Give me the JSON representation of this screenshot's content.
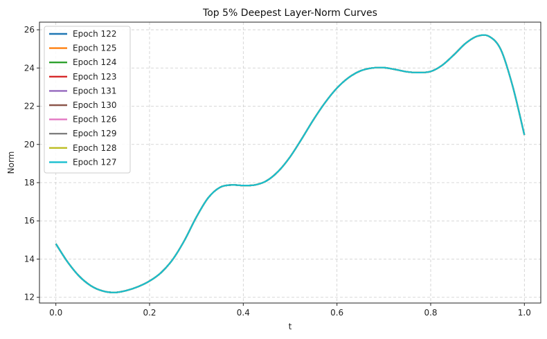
{
  "chart_data": {
    "type": "line",
    "title": "Top 5% Deepest Layer-Norm Curves",
    "xlabel": "t",
    "ylabel": "Norm",
    "xlim": [
      -0.035,
      1.035
    ],
    "ylim": [
      11.7,
      26.4
    ],
    "xticks": [
      0.0,
      0.2,
      0.4,
      0.6,
      0.8,
      1.0
    ],
    "xtick_labels": [
      "0.0",
      "0.2",
      "0.4",
      "0.6",
      "0.8",
      "1.0"
    ],
    "yticks": [
      12,
      14,
      16,
      18,
      20,
      22,
      24,
      26
    ],
    "ytick_labels": [
      "12",
      "14",
      "16",
      "18",
      "20",
      "22",
      "24",
      "26"
    ],
    "grid": true,
    "legend_position": "top-left",
    "x": [
      0.0,
      0.025,
      0.05,
      0.075,
      0.1,
      0.125,
      0.15,
      0.175,
      0.2,
      0.225,
      0.25,
      0.275,
      0.3,
      0.325,
      0.35,
      0.375,
      0.4,
      0.425,
      0.45,
      0.475,
      0.5,
      0.525,
      0.55,
      0.575,
      0.6,
      0.625,
      0.65,
      0.675,
      0.7,
      0.725,
      0.75,
      0.775,
      0.8,
      0.825,
      0.85,
      0.875,
      0.9,
      0.925,
      0.95,
      0.975,
      1.0
    ],
    "series": [
      {
        "name": "Epoch 122",
        "color": "#1f77b4",
        "values": [
          14.8,
          13.85,
          13.1,
          12.6,
          12.33,
          12.25,
          12.35,
          12.55,
          12.85,
          13.3,
          14.0,
          15.0,
          16.2,
          17.2,
          17.75,
          17.88,
          17.85,
          17.88,
          18.1,
          18.6,
          19.35,
          20.3,
          21.3,
          22.2,
          22.95,
          23.5,
          23.85,
          24.0,
          24.02,
          23.92,
          23.8,
          23.76,
          23.82,
          24.15,
          24.7,
          25.3,
          25.67,
          25.65,
          24.95,
          23.05,
          20.5
        ]
      },
      {
        "name": "Epoch 125",
        "color": "#ff7f0e",
        "values": [
          14.8,
          13.85,
          13.1,
          12.6,
          12.33,
          12.25,
          12.35,
          12.55,
          12.85,
          13.3,
          14.0,
          15.0,
          16.2,
          17.2,
          17.75,
          17.88,
          17.85,
          17.88,
          18.1,
          18.6,
          19.35,
          20.3,
          21.3,
          22.2,
          22.95,
          23.5,
          23.85,
          24.0,
          24.02,
          23.92,
          23.8,
          23.76,
          23.82,
          24.15,
          24.7,
          25.3,
          25.67,
          25.65,
          24.95,
          23.05,
          20.5
        ]
      },
      {
        "name": "Epoch 124",
        "color": "#2ca02c",
        "values": [
          14.8,
          13.85,
          13.1,
          12.6,
          12.33,
          12.25,
          12.35,
          12.55,
          12.85,
          13.3,
          14.0,
          15.0,
          16.2,
          17.2,
          17.75,
          17.88,
          17.85,
          17.88,
          18.1,
          18.6,
          19.35,
          20.3,
          21.3,
          22.2,
          22.95,
          23.5,
          23.85,
          24.0,
          24.02,
          23.92,
          23.8,
          23.76,
          23.82,
          24.15,
          24.7,
          25.3,
          25.67,
          25.65,
          24.95,
          23.05,
          20.5
        ]
      },
      {
        "name": "Epoch 123",
        "color": "#d62728",
        "values": [
          14.8,
          13.85,
          13.1,
          12.6,
          12.33,
          12.25,
          12.35,
          12.55,
          12.85,
          13.3,
          14.0,
          15.0,
          16.2,
          17.2,
          17.75,
          17.88,
          17.85,
          17.88,
          18.1,
          18.6,
          19.35,
          20.3,
          21.3,
          22.2,
          22.95,
          23.5,
          23.85,
          24.0,
          24.02,
          23.92,
          23.8,
          23.76,
          23.82,
          24.15,
          24.7,
          25.3,
          25.67,
          25.65,
          24.95,
          23.05,
          20.5
        ]
      },
      {
        "name": "Epoch 131",
        "color": "#9467bd",
        "values": [
          14.8,
          13.85,
          13.1,
          12.6,
          12.33,
          12.25,
          12.35,
          12.55,
          12.85,
          13.3,
          14.0,
          15.0,
          16.2,
          17.2,
          17.75,
          17.88,
          17.85,
          17.88,
          18.1,
          18.6,
          19.35,
          20.3,
          21.3,
          22.2,
          22.95,
          23.5,
          23.85,
          24.0,
          24.02,
          23.92,
          23.8,
          23.76,
          23.82,
          24.15,
          24.7,
          25.3,
          25.67,
          25.65,
          24.95,
          23.05,
          20.5
        ]
      },
      {
        "name": "Epoch 130",
        "color": "#8c564b",
        "values": [
          14.8,
          13.85,
          13.1,
          12.6,
          12.33,
          12.25,
          12.35,
          12.55,
          12.85,
          13.3,
          14.0,
          15.0,
          16.2,
          17.2,
          17.75,
          17.88,
          17.85,
          17.88,
          18.1,
          18.6,
          19.35,
          20.3,
          21.3,
          22.2,
          22.95,
          23.5,
          23.85,
          24.0,
          24.02,
          23.92,
          23.8,
          23.76,
          23.82,
          24.15,
          24.7,
          25.3,
          25.67,
          25.65,
          24.95,
          23.05,
          20.5
        ]
      },
      {
        "name": "Epoch 126",
        "color": "#e377c2",
        "values": [
          14.8,
          13.85,
          13.1,
          12.6,
          12.33,
          12.25,
          12.35,
          12.55,
          12.85,
          13.3,
          14.0,
          15.0,
          16.2,
          17.2,
          17.75,
          17.88,
          17.85,
          17.88,
          18.1,
          18.6,
          19.35,
          20.3,
          21.3,
          22.2,
          22.95,
          23.5,
          23.85,
          24.0,
          24.02,
          23.92,
          23.8,
          23.76,
          23.82,
          24.15,
          24.7,
          25.3,
          25.67,
          25.65,
          24.95,
          23.05,
          20.5
        ]
      },
      {
        "name": "Epoch 129",
        "color": "#7f7f7f",
        "values": [
          14.8,
          13.85,
          13.1,
          12.6,
          12.33,
          12.25,
          12.35,
          12.55,
          12.85,
          13.3,
          14.0,
          15.0,
          16.2,
          17.2,
          17.75,
          17.88,
          17.85,
          17.88,
          18.1,
          18.6,
          19.35,
          20.3,
          21.3,
          22.2,
          22.95,
          23.5,
          23.85,
          24.0,
          24.02,
          23.92,
          23.8,
          23.76,
          23.82,
          24.15,
          24.7,
          25.3,
          25.67,
          25.65,
          24.95,
          23.05,
          20.5
        ]
      },
      {
        "name": "Epoch 128",
        "color": "#bcbd22",
        "values": [
          14.8,
          13.85,
          13.1,
          12.6,
          12.33,
          12.25,
          12.35,
          12.55,
          12.85,
          13.3,
          14.0,
          15.0,
          16.2,
          17.2,
          17.75,
          17.88,
          17.85,
          17.88,
          18.1,
          18.6,
          19.35,
          20.3,
          21.3,
          22.2,
          22.95,
          23.5,
          23.85,
          24.0,
          24.02,
          23.92,
          23.8,
          23.76,
          23.82,
          24.15,
          24.7,
          25.3,
          25.67,
          25.65,
          24.95,
          23.05,
          20.5
        ]
      },
      {
        "name": "Epoch 127",
        "color": "#17becf",
        "values": [
          14.8,
          13.85,
          13.1,
          12.6,
          12.33,
          12.25,
          12.35,
          12.55,
          12.85,
          13.3,
          14.0,
          15.0,
          16.2,
          17.2,
          17.75,
          17.88,
          17.85,
          17.88,
          18.1,
          18.6,
          19.35,
          20.3,
          21.3,
          22.2,
          22.95,
          23.5,
          23.85,
          24.0,
          24.02,
          23.92,
          23.8,
          23.76,
          23.82,
          24.15,
          24.7,
          25.3,
          25.67,
          25.65,
          24.95,
          23.05,
          20.5
        ]
      }
    ]
  }
}
